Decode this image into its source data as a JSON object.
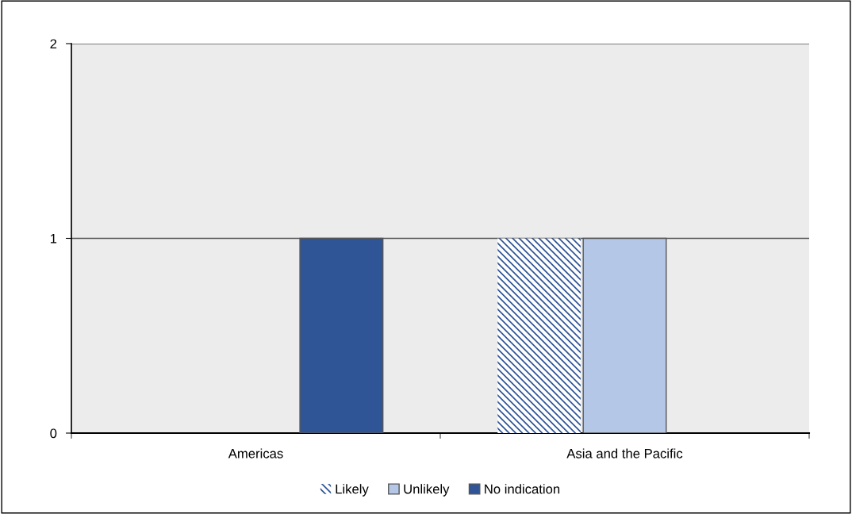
{
  "chart_data": {
    "type": "bar",
    "categories": [
      "Americas",
      "Asia and the Pacific"
    ],
    "series": [
      {
        "name": "Likely",
        "color": "#2f5597",
        "values": [
          0,
          1
        ]
      },
      {
        "name": "Unlikely",
        "color": "#b4c7e7",
        "values": [
          0,
          1
        ]
      },
      {
        "name": "No indication",
        "color": "#2f5597",
        "values": [
          1,
          0
        ]
      }
    ],
    "ylim": [
      0,
      2
    ],
    "yticks": [
      0,
      1,
      2
    ],
    "grid": "y",
    "legend": "bottom"
  }
}
